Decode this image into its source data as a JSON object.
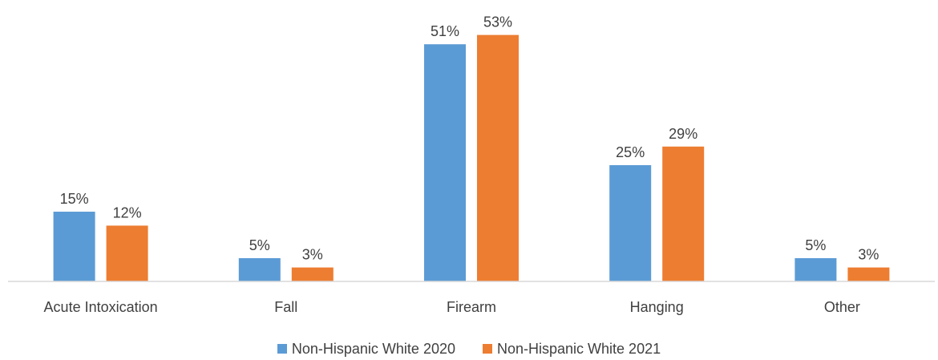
{
  "chart_data": {
    "type": "bar",
    "title": "",
    "xlabel": "",
    "ylabel": "",
    "ylim": [
      0,
      55
    ],
    "grid": false,
    "legend_position": "bottom",
    "value_suffix": "%",
    "categories": [
      "Acute Intoxication",
      "Fall",
      "Firearm",
      "Hanging",
      "Other"
    ],
    "series": [
      {
        "name": "Non-Hispanic White 2020",
        "color": "#5B9BD5",
        "values": [
          15,
          5,
          51,
          25,
          5
        ],
        "labels": [
          "15%",
          "5%",
          "51%",
          "25%",
          "5%"
        ]
      },
      {
        "name": "Non-Hispanic White 2021",
        "color": "#ED7D31",
        "values": [
          12,
          3,
          53,
          29,
          3
        ],
        "labels": [
          "12%",
          "3%",
          "53%",
          "29%",
          "3%"
        ]
      }
    ]
  }
}
